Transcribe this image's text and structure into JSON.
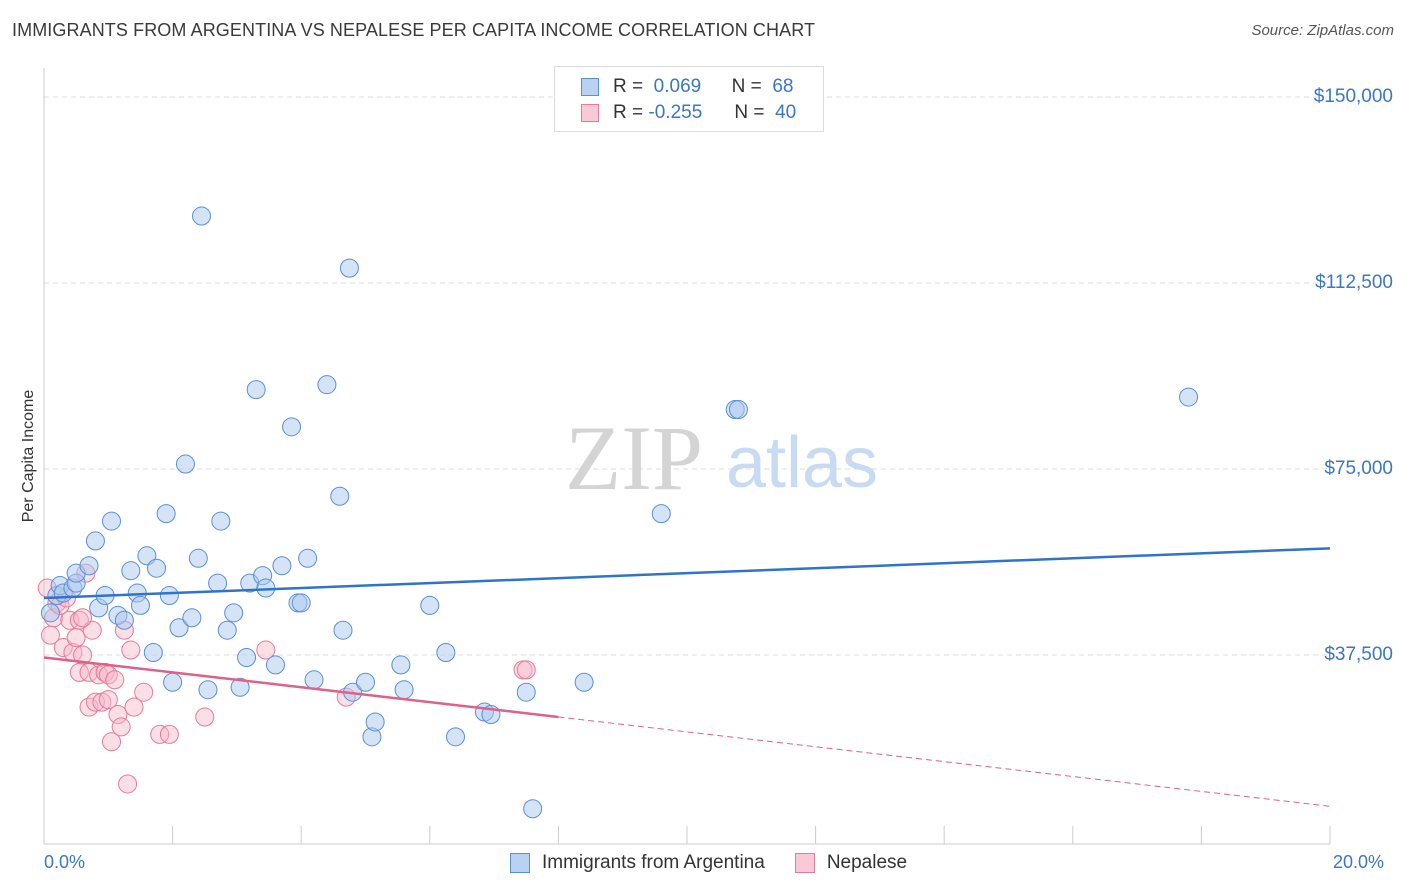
{
  "title": "IMMIGRANTS FROM ARGENTINA VS NEPALESE PER CAPITA INCOME CORRELATION CHART",
  "source": "Source: ZipAtlas.com",
  "watermark": {
    "zip": "ZIP",
    "atlas": "atlas"
  },
  "legend": {
    "rows": [
      {
        "r_label": "R =",
        "r_value": "0.069",
        "n_label": "N =",
        "n_value": "68"
      },
      {
        "r_label": "R =",
        "r_value": "-0.255",
        "n_label": "N =",
        "n_value": "40"
      }
    ]
  },
  "colors": {
    "blue_fill": "#a9c7ee",
    "blue_stroke": "#5b8fd6",
    "blue_line": "#2e73cc",
    "pink_fill": "#f6b8ca",
    "pink_stroke": "#e57a9d",
    "pink_line": "#e0608a",
    "grid": "#d9d9d9",
    "accent_text": "#3b78c4"
  },
  "chart_data": {
    "type": "scatter",
    "title": "IMMIGRANTS FROM ARGENTINA VS NEPALESE PER CAPITA INCOME CORRELATION CHART",
    "xlabel": "",
    "ylabel": "Per Capita Income",
    "xlim": [
      0,
      20
    ],
    "ylim": [
      0,
      155000
    ],
    "x_tick_labels": [
      "0.0%",
      "20.0%"
    ],
    "y_ticks": [
      {
        "value": 37500,
        "label": "$37,500"
      },
      {
        "value": 75000,
        "label": "$75,000"
      },
      {
        "value": 112500,
        "label": "$112,500"
      },
      {
        "value": 150000,
        "label": "$150,000"
      }
    ],
    "grid": true,
    "legend_position": "bottom",
    "series": [
      {
        "name": "Immigrants from Argentina",
        "color": "#a9c7ee",
        "trend": {
          "x": [
            0.0,
            20.0
          ],
          "y": [
            49000,
            59000
          ],
          "style": "solid"
        },
        "points": [
          {
            "x": 0.1,
            "y": 46000
          },
          {
            "x": 0.2,
            "y": 49500
          },
          {
            "x": 0.25,
            "y": 51500
          },
          {
            "x": 0.3,
            "y": 50000
          },
          {
            "x": 0.45,
            "y": 51000
          },
          {
            "x": 0.5,
            "y": 52000
          },
          {
            "x": 0.5,
            "y": 54000
          },
          {
            "x": 0.7,
            "y": 55500
          },
          {
            "x": 0.8,
            "y": 60500
          },
          {
            "x": 0.85,
            "y": 47000
          },
          {
            "x": 0.95,
            "y": 49500
          },
          {
            "x": 1.05,
            "y": 64500
          },
          {
            "x": 1.15,
            "y": 45500
          },
          {
            "x": 1.25,
            "y": 44500
          },
          {
            "x": 1.35,
            "y": 54500
          },
          {
            "x": 1.45,
            "y": 50000
          },
          {
            "x": 1.5,
            "y": 47500
          },
          {
            "x": 1.6,
            "y": 57500
          },
          {
            "x": 1.7,
            "y": 38000
          },
          {
            "x": 1.75,
            "y": 55000
          },
          {
            "x": 1.9,
            "y": 66000
          },
          {
            "x": 1.95,
            "y": 49500
          },
          {
            "x": 2.0,
            "y": 32000
          },
          {
            "x": 2.1,
            "y": 43000
          },
          {
            "x": 2.2,
            "y": 76000
          },
          {
            "x": 2.3,
            "y": 45000
          },
          {
            "x": 2.4,
            "y": 57000
          },
          {
            "x": 2.45,
            "y": 126000
          },
          {
            "x": 2.55,
            "y": 30500
          },
          {
            "x": 2.7,
            "y": 52000
          },
          {
            "x": 2.75,
            "y": 64500
          },
          {
            "x": 2.85,
            "y": 42500
          },
          {
            "x": 2.95,
            "y": 46000
          },
          {
            "x": 3.05,
            "y": 31000
          },
          {
            "x": 3.15,
            "y": 37000
          },
          {
            "x": 3.2,
            "y": 52000
          },
          {
            "x": 3.3,
            "y": 91000
          },
          {
            "x": 3.4,
            "y": 53500
          },
          {
            "x": 3.45,
            "y": 51000
          },
          {
            "x": 3.6,
            "y": 35500
          },
          {
            "x": 3.7,
            "y": 55500
          },
          {
            "x": 3.85,
            "y": 83500
          },
          {
            "x": 3.95,
            "y": 48000
          },
          {
            "x": 4.0,
            "y": 48000
          },
          {
            "x": 4.1,
            "y": 57000
          },
          {
            "x": 4.2,
            "y": 32500
          },
          {
            "x": 4.4,
            "y": 92000
          },
          {
            "x": 4.6,
            "y": 69500
          },
          {
            "x": 4.65,
            "y": 42500
          },
          {
            "x": 4.75,
            "y": 115500
          },
          {
            "x": 4.8,
            "y": 30000
          },
          {
            "x": 5.0,
            "y": 32000
          },
          {
            "x": 5.1,
            "y": 21000
          },
          {
            "x": 5.15,
            "y": 24000
          },
          {
            "x": 5.55,
            "y": 35500
          },
          {
            "x": 5.6,
            "y": 30500
          },
          {
            "x": 6.0,
            "y": 47500
          },
          {
            "x": 6.25,
            "y": 38000
          },
          {
            "x": 6.4,
            "y": 21000
          },
          {
            "x": 6.85,
            "y": 26000
          },
          {
            "x": 6.95,
            "y": 25500
          },
          {
            "x": 7.5,
            "y": 30000
          },
          {
            "x": 7.6,
            "y": 6500
          },
          {
            "x": 8.4,
            "y": 32000
          },
          {
            "x": 9.6,
            "y": 66000
          },
          {
            "x": 10.75,
            "y": 87000
          },
          {
            "x": 10.8,
            "y": 87000
          },
          {
            "x": 17.8,
            "y": 89500
          }
        ]
      },
      {
        "name": "Nepalese",
        "color": "#f6b8ca",
        "trend": {
          "x": [
            0.0,
            8.0,
            20.0
          ],
          "y": [
            37000,
            25000,
            7000
          ],
          "style": "solid-then-dashed"
        },
        "points": [
          {
            "x": 0.05,
            "y": 51000
          },
          {
            "x": 0.1,
            "y": 41500
          },
          {
            "x": 0.15,
            "y": 45000
          },
          {
            "x": 0.2,
            "y": 48000
          },
          {
            "x": 0.25,
            "y": 47500
          },
          {
            "x": 0.3,
            "y": 39000
          },
          {
            "x": 0.4,
            "y": 44500
          },
          {
            "x": 0.45,
            "y": 38000
          },
          {
            "x": 0.5,
            "y": 41000
          },
          {
            "x": 0.55,
            "y": 44500
          },
          {
            "x": 0.55,
            "y": 34000
          },
          {
            "x": 0.6,
            "y": 37500
          },
          {
            "x": 0.65,
            "y": 54000
          },
          {
            "x": 0.7,
            "y": 34000
          },
          {
            "x": 0.75,
            "y": 42500
          },
          {
            "x": 0.7,
            "y": 27000
          },
          {
            "x": 0.8,
            "y": 28000
          },
          {
            "x": 0.85,
            "y": 33500
          },
          {
            "x": 0.9,
            "y": 28000
          },
          {
            "x": 0.95,
            "y": 34000
          },
          {
            "x": 1.0,
            "y": 33500
          },
          {
            "x": 1.0,
            "y": 28500
          },
          {
            "x": 1.05,
            "y": 20000
          },
          {
            "x": 1.1,
            "y": 32500
          },
          {
            "x": 1.15,
            "y": 25500
          },
          {
            "x": 1.2,
            "y": 23000
          },
          {
            "x": 1.25,
            "y": 42500
          },
          {
            "x": 1.3,
            "y": 11500
          },
          {
            "x": 1.35,
            "y": 38500
          },
          {
            "x": 1.4,
            "y": 27000
          },
          {
            "x": 1.55,
            "y": 30000
          },
          {
            "x": 1.8,
            "y": 21500
          },
          {
            "x": 1.95,
            "y": 21500
          },
          {
            "x": 2.5,
            "y": 25000
          },
          {
            "x": 3.45,
            "y": 38500
          },
          {
            "x": 4.7,
            "y": 29000
          },
          {
            "x": 7.45,
            "y": 34500
          },
          {
            "x": 7.5,
            "y": 34500
          },
          {
            "x": 0.35,
            "y": 49000
          },
          {
            "x": 0.6,
            "y": 45000
          }
        ]
      }
    ]
  }
}
